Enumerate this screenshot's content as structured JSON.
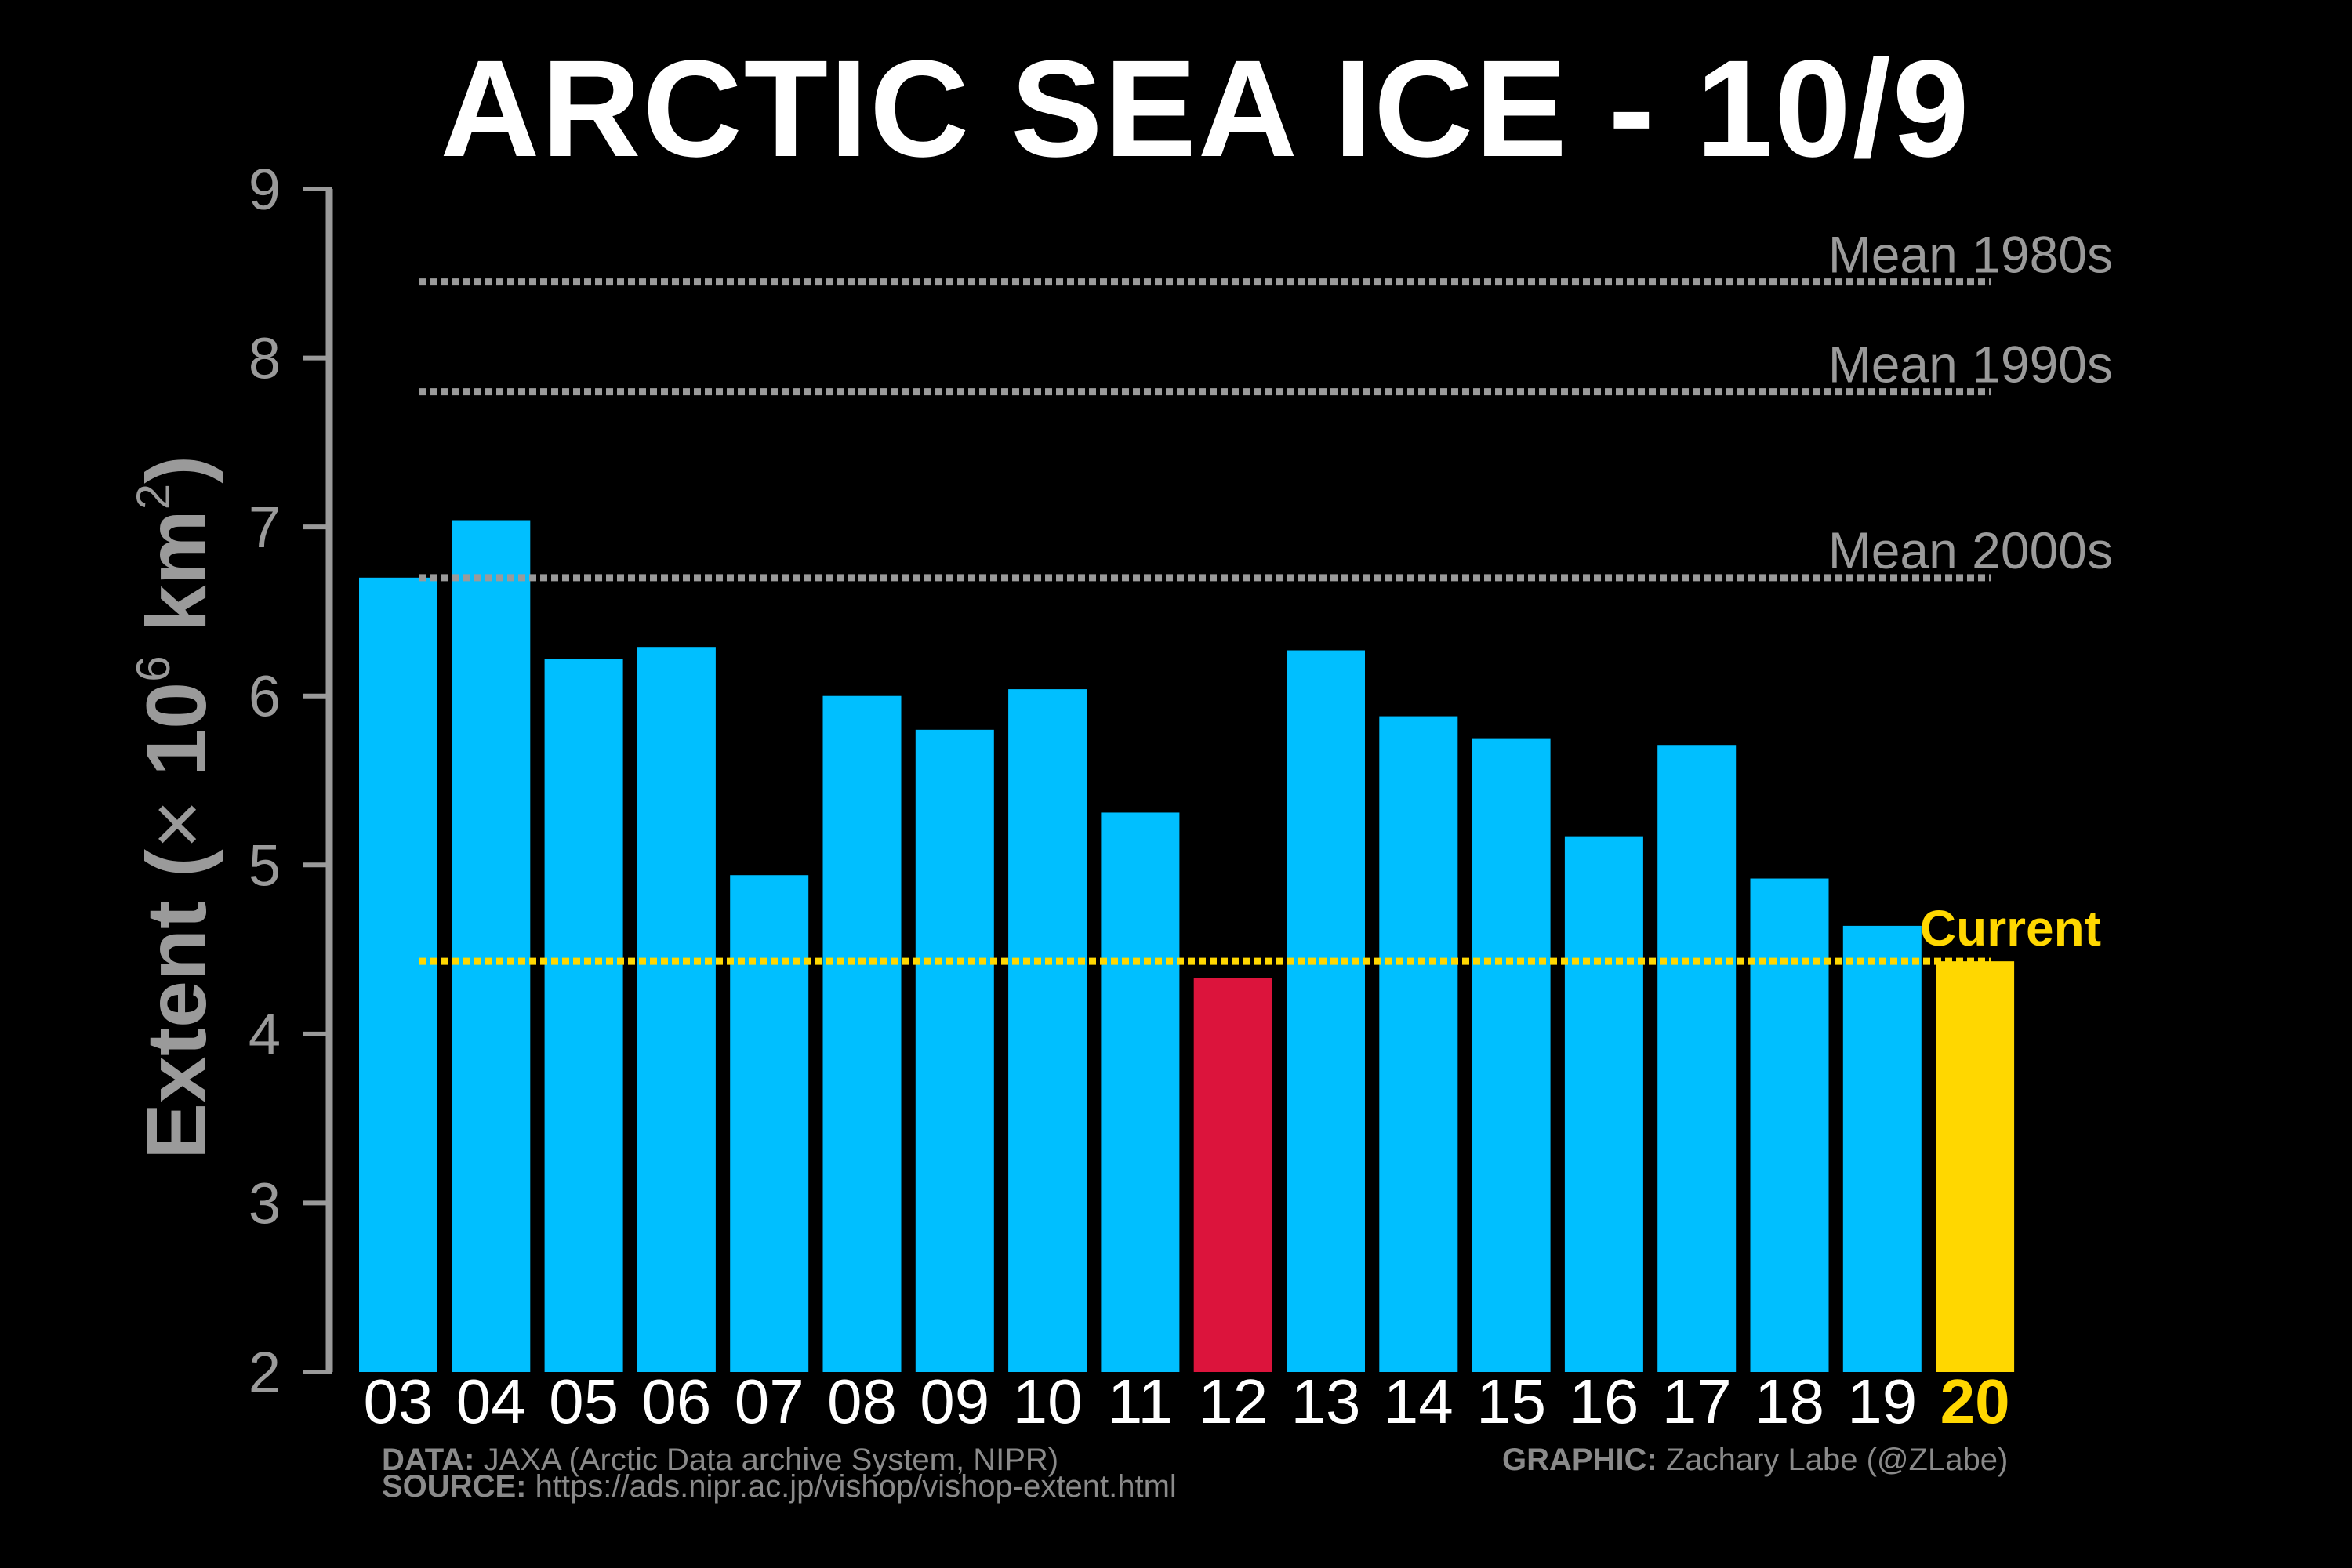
{
  "chart_data": {
    "type": "bar",
    "title": "ARCTIC SEA ICE - 10/9",
    "ylabel": "Extent (× 10⁶ km²)",
    "ylabel_base": "Extent (",
    "ylabel_times": "×",
    "ylabel_ten": "10",
    "ylabel_exp": "6",
    "ylabel_unit": "km",
    "ylabel_unit_exp": "2",
    "ylabel_close": ")",
    "ylim": [
      2,
      9
    ],
    "yticks": [
      "2",
      "3",
      "4",
      "5",
      "6",
      "7",
      "8",
      "9"
    ],
    "categories": [
      "03",
      "04",
      "05",
      "06",
      "07",
      "08",
      "09",
      "10",
      "11",
      "12",
      "13",
      "14",
      "15",
      "16",
      "17",
      "18",
      "19",
      "20"
    ],
    "values": [
      6.7,
      7.04,
      6.22,
      6.29,
      4.94,
      6.0,
      5.8,
      6.04,
      5.31,
      4.33,
      6.27,
      5.88,
      5.75,
      5.17,
      5.71,
      4.92,
      4.64,
      4.43
    ],
    "highlight": {
      "minimum_index": 9,
      "current_index": 17
    },
    "reference_lines": [
      {
        "label": "Mean 1980s",
        "value": 8.45
      },
      {
        "label": "Mean 1990s",
        "value": 7.8
      },
      {
        "label": "Mean 2000s",
        "value": 6.7
      }
    ],
    "current_line": {
      "label": "Current",
      "value": 4.43
    },
    "grid": false,
    "legend": "none"
  },
  "colors": {
    "background": "#000000",
    "bar": "#00BFFF",
    "minimum_bar": "#DC143C",
    "current": "#FFD700",
    "reference": "#9a9a9a",
    "axis": "#9a9a9a",
    "text": "#ffffff"
  },
  "credits": {
    "data_label": "DATA:",
    "data_text": " JAXA (Arctic Data archive System, NIPR)",
    "source_label": "SOURCE:",
    "source_text": " https://ads.nipr.ac.jp/vishop/vishop-extent.html",
    "graphic_label": "GRAPHIC:",
    "graphic_text": " Zachary Labe (@ZLabe)"
  }
}
